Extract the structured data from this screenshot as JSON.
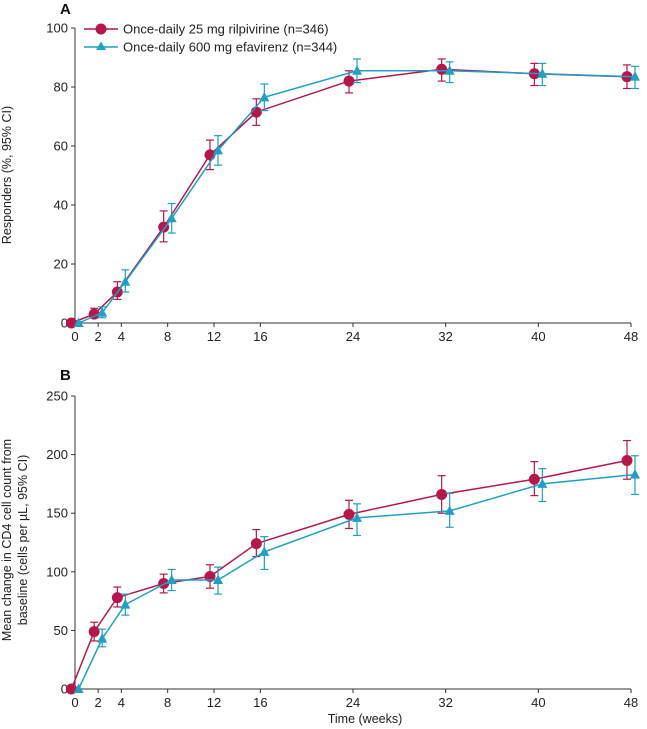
{
  "colors": {
    "rilpivirine": "#b5174b",
    "efavirenz": "#1fa0c4",
    "axis": "#333333"
  },
  "legend": {
    "rilpivirine": "Once-daily 25 mg rilpivirine (n=346)",
    "efavirenz": "Once-daily 600 mg efavirenz (n=344)"
  },
  "xlabel": "Time (weeks)",
  "chart_data": [
    {
      "type": "line",
      "panel": "A",
      "ylabel": "Responders (%, 95% CI)",
      "xlim": [
        0,
        48
      ],
      "ylim": [
        0,
        100
      ],
      "xticks": [
        0,
        2,
        4,
        8,
        12,
        16,
        24,
        32,
        40,
        48
      ],
      "yticks": [
        0,
        20,
        40,
        60,
        80,
        100
      ],
      "legend_position": "top-left",
      "series": [
        {
          "name": "Once-daily 25 mg rilpivirine (n=346)",
          "marker": "circle",
          "x": [
            0,
            2,
            4,
            8,
            12,
            16,
            24,
            32,
            40,
            48
          ],
          "y": [
            0,
            3,
            10.5,
            32.5,
            57,
            71.5,
            82,
            86,
            84.5,
            83.5
          ],
          "ci_low": [
            0,
            1.8,
            8,
            27.5,
            52,
            67,
            78,
            82,
            80.5,
            79.5
          ],
          "ci_high": [
            0,
            5,
            14,
            38,
            62,
            76,
            85.5,
            89.5,
            88,
            87.5
          ]
        },
        {
          "name": "Once-daily 600 mg efavirenz (n=344)",
          "marker": "triangle",
          "x": [
            0,
            2,
            4,
            8,
            12,
            16,
            24,
            32,
            40,
            48
          ],
          "y": [
            0,
            3.5,
            14,
            35.5,
            58.5,
            76.5,
            85.5,
            85.5,
            84.5,
            83.5
          ],
          "ci_low": [
            0,
            1.8,
            10.5,
            30.5,
            53.5,
            72,
            81.5,
            81.5,
            80.5,
            79.5
          ],
          "ci_high": [
            0,
            5.5,
            18,
            40.5,
            63.5,
            81,
            89.5,
            88.5,
            88,
            87
          ]
        }
      ]
    },
    {
      "type": "line",
      "panel": "B",
      "ylabel": "Mean change in CD4 cell count from baseline (cells per µL, 95% CI)",
      "xlim": [
        0,
        48
      ],
      "ylim": [
        0,
        250
      ],
      "xticks": [
        0,
        2,
        4,
        8,
        12,
        16,
        24,
        32,
        40,
        48
      ],
      "yticks": [
        0,
        50,
        100,
        150,
        200,
        250
      ],
      "series": [
        {
          "name": "Once-daily 25 mg rilpivirine (n=346)",
          "marker": "circle",
          "x": [
            0,
            2,
            4,
            8,
            12,
            16,
            24,
            32,
            40,
            48
          ],
          "y": [
            0,
            49,
            78,
            90,
            96,
            124,
            149,
            166,
            179,
            195
          ],
          "ci_low": [
            0,
            41,
            70,
            82,
            86,
            113,
            137,
            150,
            165,
            179
          ],
          "ci_high": [
            0,
            57,
            87,
            98,
            106,
            136,
            161,
            182,
            194,
            212
          ]
        },
        {
          "name": "Once-daily 600 mg efavirenz (n=344)",
          "marker": "triangle",
          "x": [
            0,
            2,
            4,
            8,
            12,
            16,
            24,
            32,
            40,
            48
          ],
          "y": [
            0,
            43,
            72,
            93,
            93,
            117,
            146,
            152,
            175,
            183
          ],
          "ci_low": [
            0,
            36,
            63,
            84,
            81,
            102,
            131,
            138,
            160,
            166
          ],
          "ci_high": [
            0,
            51,
            81,
            102,
            104,
            130,
            158,
            167,
            188,
            199
          ]
        }
      ]
    }
  ]
}
